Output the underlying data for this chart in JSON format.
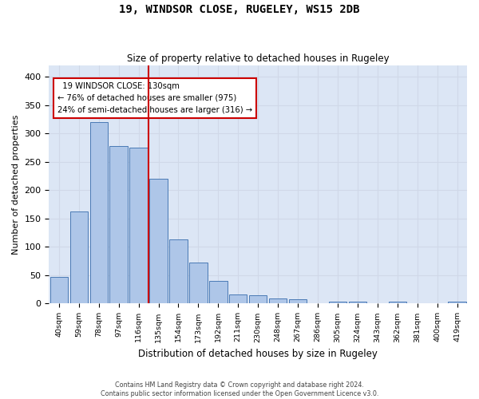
{
  "title": "19, WINDSOR CLOSE, RUGELEY, WS15 2DB",
  "subtitle": "Size of property relative to detached houses in Rugeley",
  "xlabel": "Distribution of detached houses by size in Rugeley",
  "ylabel": "Number of detached properties",
  "categories": [
    "40sqm",
    "59sqm",
    "78sqm",
    "97sqm",
    "116sqm",
    "135sqm",
    "154sqm",
    "173sqm",
    "192sqm",
    "211sqm",
    "230sqm",
    "248sqm",
    "267sqm",
    "286sqm",
    "305sqm",
    "324sqm",
    "343sqm",
    "362sqm",
    "381sqm",
    "400sqm",
    "419sqm"
  ],
  "values": [
    47,
    163,
    320,
    278,
    275,
    220,
    113,
    73,
    40,
    16,
    15,
    9,
    7,
    0,
    4,
    4,
    0,
    4,
    0,
    0,
    3
  ],
  "bar_color": "#aec6e8",
  "bar_edge_color": "#4a7ab5",
  "vline_x": 5,
  "marker_label": "19 WINDSOR CLOSE: 130sqm",
  "pct_smaller": "76% of detached houses are smaller (975)",
  "pct_larger": "24% of semi-detached houses are larger (316)",
  "vline_color": "#cc0000",
  "annotation_box_color": "#cc0000",
  "ylim": [
    0,
    420
  ],
  "yticks": [
    0,
    50,
    100,
    150,
    200,
    250,
    300,
    350,
    400
  ],
  "background_color": "#ffffff",
  "grid_color": "#d0d8e8",
  "footer_line1": "Contains HM Land Registry data © Crown copyright and database right 2024.",
  "footer_line2": "Contains public sector information licensed under the Open Government Licence v3.0."
}
